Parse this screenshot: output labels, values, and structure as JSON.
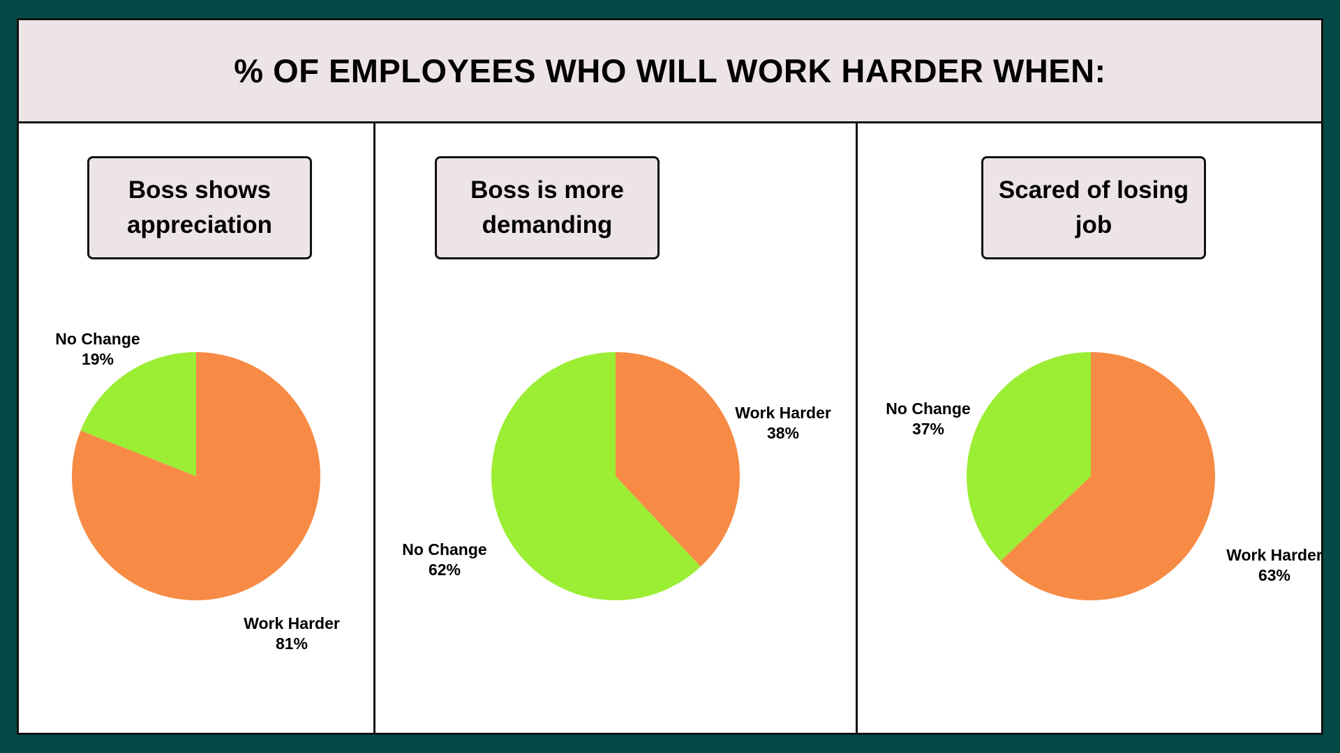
{
  "title": "% OF EMPLOYEES WHO WILL WORK HARDER WHEN:",
  "colors": {
    "work_harder": "#f78b45",
    "no_change": "#9bee33",
    "frame": "#034a47",
    "header_bg": "#ede5e5"
  },
  "chart_data": [
    {
      "type": "pie",
      "title": "Boss shows appreciation",
      "slices": [
        {
          "label": "Work Harder",
          "value": 81,
          "value_text": "81%"
        },
        {
          "label": "No Change",
          "value": 19,
          "value_text": "19%"
        }
      ]
    },
    {
      "type": "pie",
      "title": "Boss is more demanding",
      "slices": [
        {
          "label": "Work Harder",
          "value": 38,
          "value_text": "38%"
        },
        {
          "label": "No Change",
          "value": 62,
          "value_text": "62%"
        }
      ]
    },
    {
      "type": "pie",
      "title": "Scared of losing job",
      "slices": [
        {
          "label": "Work Harder",
          "value": 63,
          "value_text": "63%"
        },
        {
          "label": "No Change",
          "value": 37,
          "value_text": "37%"
        }
      ]
    }
  ]
}
